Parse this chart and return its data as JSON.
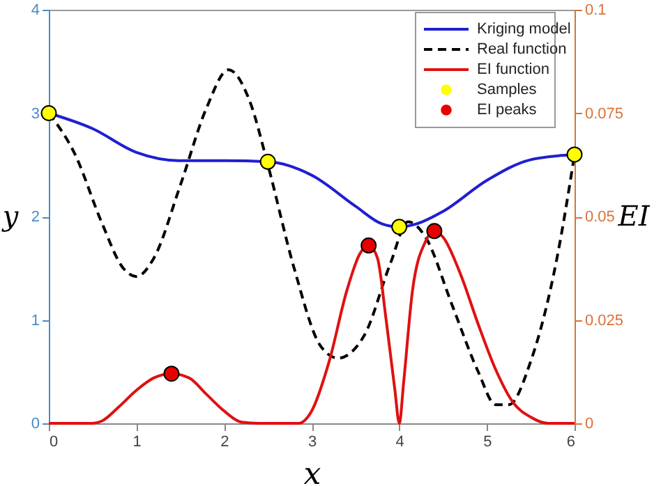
{
  "chart_data": {
    "type": "line",
    "xlabel": "x",
    "ylabel": "y",
    "y2label": "EI",
    "xlim": [
      0,
      6
    ],
    "xticks": [
      0,
      1,
      2,
      3,
      4,
      5,
      6
    ],
    "ylim": [
      0,
      4
    ],
    "yticks": [
      0,
      1,
      2,
      3,
      4
    ],
    "y2lim": [
      0,
      0.1
    ],
    "y2ticks": [
      0,
      0.025,
      0.05,
      0.075,
      0.1
    ],
    "legend": "top right",
    "grid": false,
    "series": [
      {
        "name": "Kriging model",
        "type": "line",
        "line_style": "solid",
        "color": "#1f1fd0",
        "x": [
          0,
          0.5,
          1,
          1.5,
          2,
          2.5,
          3,
          3.5,
          3.8,
          4,
          4.2,
          4.5,
          5,
          5.5,
          6
        ],
        "values": [
          3.0,
          2.85,
          2.62,
          2.54,
          2.54,
          2.53,
          2.4,
          2.1,
          1.93,
          1.9,
          1.93,
          2.05,
          2.35,
          2.55,
          2.6
        ]
      },
      {
        "name": "Real function",
        "type": "line",
        "line_style": "dashed",
        "color": "#000000",
        "x": [
          0,
          0.3,
          0.6,
          0.85,
          1,
          1.2,
          1.5,
          1.8,
          2.05,
          2.3,
          2.5,
          2.8,
          3.1,
          3.3,
          3.6,
          3.9,
          4.1,
          4.3,
          4.6,
          4.9,
          5.1,
          5.25,
          5.5,
          5.8,
          6
        ],
        "values": [
          3.0,
          2.6,
          1.95,
          1.5,
          1.42,
          1.6,
          2.3,
          3.05,
          3.42,
          3.1,
          2.5,
          1.5,
          0.75,
          0.63,
          0.85,
          1.55,
          1.95,
          1.8,
          1.15,
          0.5,
          0.18,
          0.18,
          0.6,
          1.6,
          2.6
        ]
      },
      {
        "name": "EI function",
        "type": "line",
        "line_style": "solid",
        "axis": "y2",
        "color": "#e01010",
        "x": [
          0,
          0.5,
          0.6,
          0.8,
          1.0,
          1.2,
          1.4,
          1.6,
          1.8,
          2.0,
          2.2,
          2.4,
          2.85,
          3.0,
          3.2,
          3.4,
          3.55,
          3.65,
          3.75,
          3.85,
          3.95,
          4.0,
          4.05,
          4.15,
          4.3,
          4.4,
          4.5,
          4.7,
          4.9,
          5.1,
          5.3,
          5.5,
          5.7,
          6
        ],
        "values": [
          0,
          0,
          0.0005,
          0.004,
          0.008,
          0.011,
          0.012,
          0.011,
          0.007,
          0.003,
          0.0003,
          0,
          0,
          0.003,
          0.015,
          0.032,
          0.041,
          0.043,
          0.04,
          0.025,
          0.008,
          0,
          0.01,
          0.032,
          0.044,
          0.0465,
          0.045,
          0.036,
          0.024,
          0.013,
          0.005,
          0.0015,
          0,
          0
        ]
      },
      {
        "name": "Samples",
        "type": "scatter",
        "marker": "circle",
        "color": "#ffff00",
        "x": [
          0,
          2.5,
          4,
          6
        ],
        "values": [
          3.0,
          2.53,
          1.9,
          2.6
        ]
      },
      {
        "name": "EI peaks",
        "type": "scatter",
        "marker": "circle",
        "axis": "y2",
        "color": "#e80000",
        "x": [
          1.4,
          3.65,
          4.4
        ],
        "values": [
          0.012,
          0.043,
          0.0465
        ]
      }
    ]
  }
}
